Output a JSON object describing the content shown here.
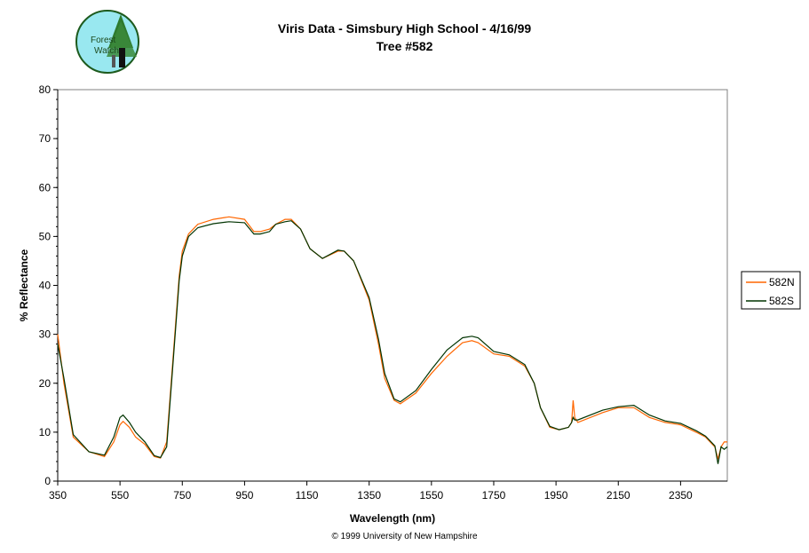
{
  "logo": {
    "text_line1": "Forest",
    "text_line2": "Watch"
  },
  "chart_data": {
    "type": "line",
    "title": "Viris Data - Simsbury High School - 4/16/99",
    "subtitle": "Tree #582",
    "xlabel": "Wavelength (nm)",
    "ylabel": "% Reflectance",
    "xlim": [
      350,
      2500
    ],
    "ylim": [
      0,
      80
    ],
    "xticks": [
      350,
      550,
      750,
      950,
      1150,
      1350,
      1550,
      1750,
      1950,
      2150,
      2350
    ],
    "yticks": [
      0,
      10,
      20,
      30,
      40,
      50,
      60,
      70,
      80
    ],
    "grid": false,
    "legend_position": "right",
    "x": [
      350,
      370,
      400,
      450,
      500,
      530,
      550,
      560,
      580,
      600,
      630,
      660,
      680,
      700,
      720,
      740,
      750,
      770,
      800,
      850,
      900,
      950,
      980,
      1000,
      1030,
      1050,
      1080,
      1100,
      1130,
      1160,
      1200,
      1250,
      1270,
      1300,
      1350,
      1380,
      1400,
      1430,
      1450,
      1500,
      1550,
      1600,
      1650,
      1680,
      1700,
      1750,
      1800,
      1850,
      1880,
      1900,
      1930,
      1960,
      1990,
      2000,
      2005,
      2010,
      2020,
      2100,
      2150,
      2200,
      2250,
      2300,
      2350,
      2400,
      2430,
      2460,
      2470,
      2480,
      2490,
      2500
    ],
    "series": [
      {
        "name": "582N",
        "color": "#ff6600",
        "values": [
          30,
          20,
          9,
          6,
          5,
          8,
          11.5,
          12.2,
          11,
          9,
          7.5,
          5,
          4.7,
          8,
          25,
          42,
          47,
          50.5,
          52.5,
          53.5,
          54,
          53.5,
          51,
          51,
          51.5,
          52.5,
          53.5,
          53.5,
          51.5,
          47.5,
          45.5,
          47,
          47,
          45,
          37,
          28,
          21,
          16.5,
          15.8,
          18,
          22,
          25.5,
          28.3,
          28.7,
          28.3,
          26,
          25.5,
          23.5,
          20,
          15,
          11,
          10.5,
          11,
          12,
          16.5,
          13,
          12,
          14,
          15,
          15,
          13,
          12,
          11.5,
          10,
          9,
          7,
          4.5,
          7,
          8,
          8
        ]
      },
      {
        "name": "582S",
        "color": "#003300",
        "values": [
          28,
          21,
          9.5,
          6,
          5.3,
          9,
          13,
          13.5,
          12,
          10,
          8,
          5.2,
          4.8,
          7,
          24,
          41,
          46,
          50,
          51.8,
          52.6,
          53,
          52.8,
          50.5,
          50.5,
          51,
          52.5,
          53,
          53.2,
          51.5,
          47.5,
          45.5,
          47.2,
          47,
          45,
          37.5,
          29,
          22,
          16.8,
          16.2,
          18.5,
          22.8,
          26.8,
          29.3,
          29.6,
          29.3,
          26.5,
          25.8,
          23.8,
          20,
          15,
          11.2,
          10.5,
          11,
          12,
          13,
          12.5,
          12.5,
          14.5,
          15.2,
          15.5,
          13.5,
          12.3,
          11.8,
          10.3,
          9.2,
          7.2,
          3.5,
          7,
          6.5,
          7
        ]
      }
    ]
  },
  "footer": {
    "copyright": "© 1999 University of New Hampshire"
  }
}
